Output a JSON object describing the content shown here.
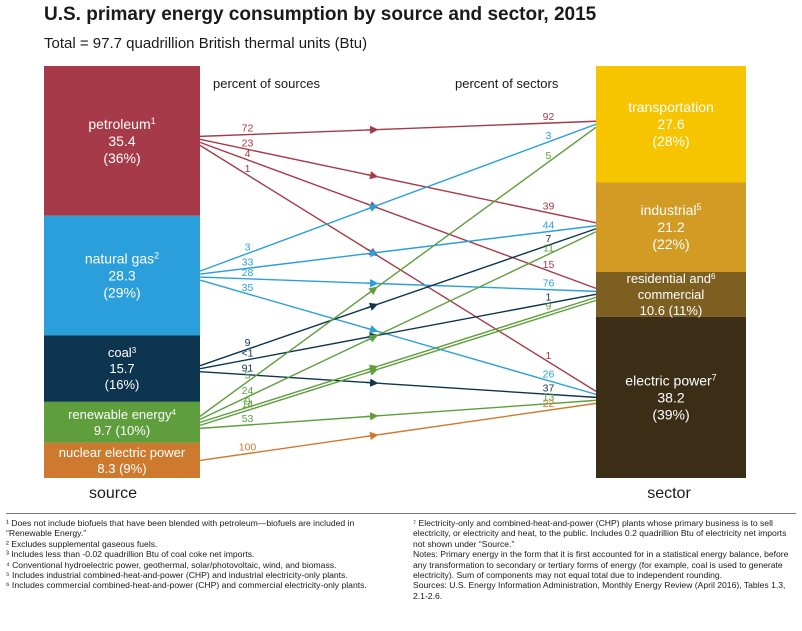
{
  "title": "U.S. primary energy consumption by source and sector, 2015",
  "subtitle": "Total = 97.7 quadrillion British thermal units (Btu)",
  "header_left": "percent of sources",
  "header_right": "percent of sectors",
  "axis_left": "source",
  "axis_right": "sector",
  "sources": [
    {
      "key": "petroleum",
      "lines": [
        "petroleum",
        "35.4",
        "(36%)"
      ],
      "sup": "1",
      "value": 35.4,
      "color": "#A63A48"
    },
    {
      "key": "gas",
      "lines": [
        "natural gas",
        "28.3",
        "(29%)"
      ],
      "sup": "2",
      "value": 28.3,
      "color": "#2B9FDB"
    },
    {
      "key": "coal",
      "lines": [
        "coal",
        "15.7",
        "(16%)"
      ],
      "sup": "3",
      "value": 15.7,
      "color": "#0E3550"
    },
    {
      "key": "renewable",
      "lines": [
        "renewable energy",
        "9.7 (10%)"
      ],
      "sup": "4",
      "value": 9.7,
      "color": "#5E9E3D"
    },
    {
      "key": "nuclear",
      "lines": [
        "nuclear electric power",
        "8.3 (9%)"
      ],
      "sup": "",
      "value": 8.3,
      "color": "#CE7A2E"
    }
  ],
  "sectors": [
    {
      "key": "transport",
      "lines": [
        "transportation",
        "27.6",
        "(28%)"
      ],
      "sup": "",
      "value": 27.6,
      "color": "#F6C500",
      "text": "#ffffff"
    },
    {
      "key": "industrial",
      "lines": [
        "industrial",
        "21.2",
        "(22%)"
      ],
      "sup": "5",
      "value": 21.2,
      "color": "#D19B24",
      "text": "#ffffff"
    },
    {
      "key": "rescom",
      "lines": [
        "residential and",
        "commercial",
        "10.6 (11%)"
      ],
      "sup": "6",
      "value": 10.6,
      "color": "#7D5F22",
      "text": "#ffffff"
    },
    {
      "key": "electric",
      "lines": [
        "electric power",
        "38.2",
        "(39%)"
      ],
      "sup": "7",
      "value": 38.2,
      "color": "#3C2E16",
      "text": "#ffffff"
    }
  ],
  "flows": [
    {
      "from": "petroleum",
      "to": "transport",
      "src_pct": "72",
      "dst_pct": "92"
    },
    {
      "from": "petroleum",
      "to": "industrial",
      "src_pct": "23",
      "dst_pct": "39"
    },
    {
      "from": "petroleum",
      "to": "rescom",
      "src_pct": "4",
      "dst_pct": "15"
    },
    {
      "from": "petroleum",
      "to": "electric",
      "src_pct": "1",
      "dst_pct": "1"
    },
    {
      "from": "gas",
      "to": "transport",
      "src_pct": "3",
      "dst_pct": "3"
    },
    {
      "from": "gas",
      "to": "industrial",
      "src_pct": "33",
      "dst_pct": "44"
    },
    {
      "from": "gas",
      "to": "rescom",
      "src_pct": "28",
      "dst_pct": "76"
    },
    {
      "from": "gas",
      "to": "electric",
      "src_pct": "35",
      "dst_pct": "26"
    },
    {
      "from": "coal",
      "to": "industrial",
      "src_pct": "9",
      "dst_pct": "7"
    },
    {
      "from": "coal",
      "to": "rescom",
      "src_pct": "<1",
      "dst_pct": "1"
    },
    {
      "from": "coal",
      "to": "electric",
      "src_pct": "91",
      "dst_pct": "37"
    },
    {
      "from": "renewable",
      "to": "transport",
      "src_pct": "5",
      "dst_pct": "5"
    },
    {
      "from": "renewable",
      "to": "industrial",
      "src_pct": "24",
      "dst_pct": "11"
    },
    {
      "from": "renewable",
      "to": "rescom",
      "src_pct": "9",
      "dst_pct": "9"
    },
    {
      "from": "renewable",
      "to": "rescom",
      "src_pct": "14",
      "dst_pct": ""
    },
    {
      "from": "renewable",
      "to": "electric",
      "src_pct": "53",
      "dst_pct": "13"
    },
    {
      "from": "nuclear",
      "to": "electric",
      "src_pct": "100",
      "dst_pct": "22"
    }
  ],
  "footnotes_left": [
    "¹ Does not include biofuels that have been blended with petroleum—biofuels are included in “Renewable Energy.”",
    "² Excludes supplemental gaseous fuels.",
    "³ Includes less than -0.02 quadrillion Btu of coal coke net imports.",
    "⁴ Conventional hydroelectric power, geothermal, solar/photovoltaic, wind, and biomass.",
    "⁵ Includes industrial combined-heat-and-power (CHP) and industrial electricity-only plants.",
    "⁶ Includes commercial combined-heat-and-power (CHP) and commercial electricity-only plants."
  ],
  "footnotes_right": [
    "⁷ Electricity-only and combined-heat-and-power (CHP) plants whose primary business is to sell electricity, or electricity and heat, to the public. Includes 0.2 quadrillion Btu of electricity net imports not shown under “Source.”",
    "Notes: Primary energy in the form that it is first accounted for in a statistical energy balance, before any transformation to secondary or tertiary forms of energy (for example, coal is used to generate electricity). Sum of components may not equal total due to independent rounding.",
    "Sources: U.S. Energy Information Administration, Monthly Energy Review (April 2016), Tables 1.3, 2.1-2.6."
  ]
}
